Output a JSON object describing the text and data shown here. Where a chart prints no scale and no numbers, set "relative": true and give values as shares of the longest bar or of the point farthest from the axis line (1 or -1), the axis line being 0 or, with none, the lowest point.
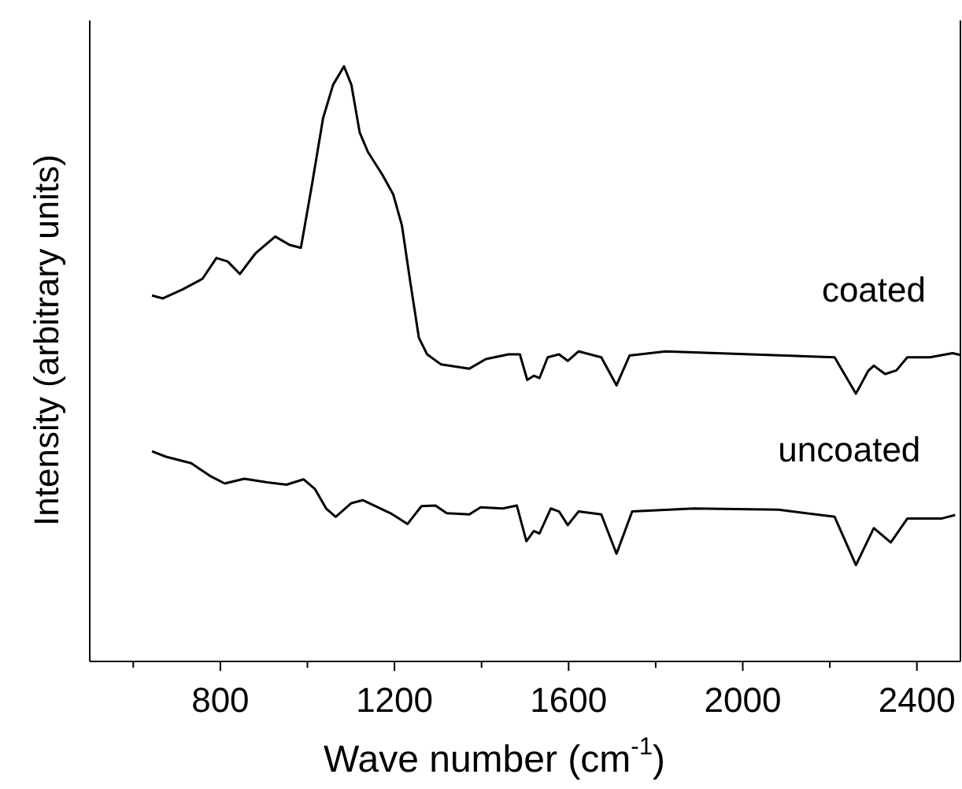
{
  "chart_data": {
    "type": "line",
    "relative": true,
    "xlabel": "Wave number (cm$^{-1}$)",
    "ylabel": "Intensity (arbitrary units)",
    "xlim": [
      500,
      2500
    ],
    "xticks": [
      {
        "value": 600,
        "label": null
      },
      800,
      {
        "value": 1000,
        "label": null
      },
      1200,
      {
        "value": 1400,
        "label": null
      },
      1600,
      {
        "value": 1800,
        "label": null
      },
      2000,
      {
        "value": 2200,
        "label": null
      },
      2400
    ],
    "marker": "none",
    "line_style": "solid",
    "series": [
      {
        "name": "coated",
        "color": "#000000",
        "x": [
          643,
          668,
          713,
          759,
          791,
          817,
          845,
          881,
          926,
          959,
          985,
          1010,
          1036,
          1059,
          1084,
          1101,
          1120,
          1139,
          1172,
          1197,
          1217,
          1236,
          1256,
          1275,
          1307,
          1372,
          1410,
          1462,
          1488,
          1505,
          1520,
          1533,
          1552,
          1578,
          1598,
          1623,
          1675,
          1710,
          1740,
          1823,
          2017,
          2211,
          2260,
          2288,
          2301,
          2327,
          2353,
          2378,
          2430,
          2482,
          2500
        ],
        "values": [
          0.615,
          0.61,
          0.625,
          0.643,
          0.678,
          0.672,
          0.651,
          0.686,
          0.714,
          0.7,
          0.695,
          0.799,
          0.913,
          0.969,
          1,
          0.969,
          0.889,
          0.856,
          0.818,
          0.785,
          0.733,
          0.639,
          0.544,
          0.516,
          0.499,
          0.492,
          0.508,
          0.516,
          0.516,
          0.473,
          0.48,
          0.476,
          0.511,
          0.516,
          0.505,
          0.521,
          0.511,
          0.464,
          0.514,
          0.521,
          0.516,
          0.511,
          0.45,
          0.488,
          0.497,
          0.483,
          0.489,
          0.511,
          0.511,
          0.518,
          0.515
        ]
      },
      {
        "name": "uncoated",
        "color": "#000000",
        "x": [
          643,
          675,
          733,
          778,
          810,
          855,
          907,
          952,
          991,
          1017,
          1043,
          1065,
          1101,
          1127,
          1191,
          1230,
          1262,
          1294,
          1320,
          1372,
          1398,
          1449,
          1481,
          1503,
          1520,
          1533,
          1559,
          1578,
          1598,
          1623,
          1675,
          1710,
          1746,
          1888,
          2082,
          2211,
          2260,
          2301,
          2340,
          2378,
          2456,
          2488
        ],
        "values": [
          0.353,
          0.344,
          0.333,
          0.311,
          0.299,
          0.307,
          0.301,
          0.297,
          0.306,
          0.29,
          0.257,
          0.243,
          0.266,
          0.271,
          0.249,
          0.231,
          0.261,
          0.262,
          0.249,
          0.247,
          0.259,
          0.257,
          0.262,
          0.202,
          0.219,
          0.215,
          0.257,
          0.252,
          0.229,
          0.252,
          0.247,
          0.181,
          0.252,
          0.257,
          0.255,
          0.243,
          0.162,
          0.224,
          0.2,
          0.24,
          0.24,
          0.246
        ]
      }
    ]
  }
}
